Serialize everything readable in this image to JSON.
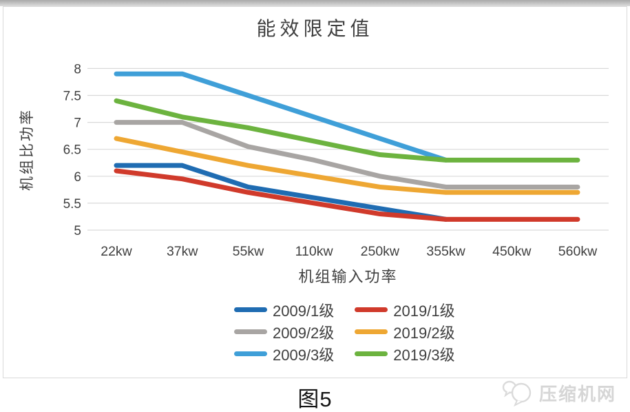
{
  "page": {
    "caption": "图5",
    "watermark_text": "压缩机网"
  },
  "chart_data": {
    "type": "line",
    "title": "能效限定值",
    "xlabel": "机组输入功率",
    "ylabel": "机组比功率",
    "ylim": [
      5,
      8
    ],
    "y_ticks": [
      8,
      7.5,
      7,
      6.5,
      6,
      5.5,
      5
    ],
    "grid": true,
    "legend_position": "bottom",
    "categories": [
      "22kw",
      "37kw",
      "55kw",
      "110kw",
      "250kw",
      "355kw",
      "450kw",
      "560kw"
    ],
    "series": [
      {
        "name": "2009/1级",
        "color": "#1f6cb2",
        "values": [
          6.2,
          6.2,
          5.8,
          5.6,
          5.4,
          5.2,
          null,
          null
        ]
      },
      {
        "name": "2019/1级",
        "color": "#d03a2b",
        "values": [
          6.1,
          5.95,
          5.7,
          5.5,
          5.3,
          5.2,
          5.2,
          5.2
        ]
      },
      {
        "name": "2009/2级",
        "color": "#a8a5a3",
        "values": [
          7.0,
          7.0,
          6.55,
          6.3,
          6.0,
          5.8,
          5.8,
          5.8
        ]
      },
      {
        "name": "2019/2级",
        "color": "#eea733",
        "values": [
          6.7,
          6.45,
          6.2,
          6.0,
          5.8,
          5.7,
          5.7,
          5.7
        ]
      },
      {
        "name": "2009/3级",
        "color": "#3f9fd8",
        "values": [
          7.9,
          7.9,
          7.5,
          7.1,
          6.7,
          6.3,
          null,
          null
        ]
      },
      {
        "name": "2019/3级",
        "color": "#6cb33f",
        "values": [
          7.4,
          7.1,
          6.9,
          6.65,
          6.4,
          6.3,
          6.3,
          6.3
        ]
      }
    ]
  }
}
